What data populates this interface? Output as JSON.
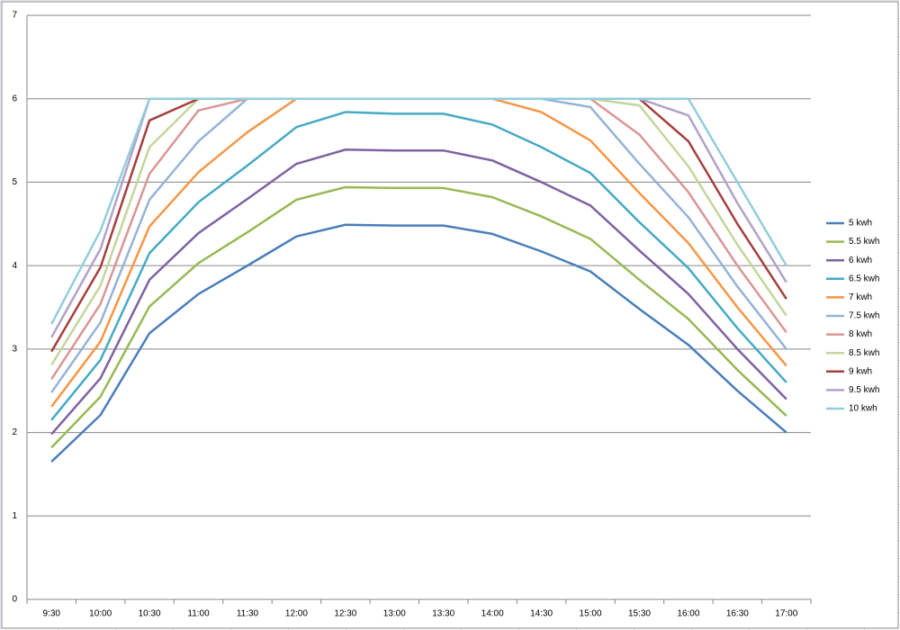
{
  "chart_data": {
    "type": "line",
    "categories": [
      "9:30",
      "10:00",
      "10:30",
      "11:00",
      "11:30",
      "12:00",
      "12:30",
      "13:00",
      "13:30",
      "14:00",
      "14:30",
      "15:00",
      "15:30",
      "16:00",
      "16:30",
      "17:00"
    ],
    "ylim": [
      0,
      7
    ],
    "yticks": [
      0,
      1,
      2,
      3,
      4,
      5,
      6,
      7
    ],
    "grid": true,
    "legend": "right",
    "series": [
      {
        "name": "5 kwh",
        "color": "#4a7ebb",
        "values": [
          1.65,
          2.21,
          3.19,
          3.66,
          4.0,
          4.35,
          4.49,
          4.48,
          4.48,
          4.38,
          4.17,
          3.93,
          3.48,
          3.05,
          2.5,
          2.0
        ]
      },
      {
        "name": "5.5 kwh",
        "color": "#98b954",
        "values": [
          1.82,
          2.43,
          3.51,
          4.03,
          4.4,
          4.79,
          4.94,
          4.93,
          4.93,
          4.82,
          4.59,
          4.32,
          3.83,
          3.36,
          2.75,
          2.2
        ]
      },
      {
        "name": "6 kwh",
        "color": "#7e62a1",
        "values": [
          1.98,
          2.65,
          3.83,
          4.39,
          4.8,
          5.22,
          5.39,
          5.38,
          5.38,
          5.26,
          5.0,
          4.72,
          4.18,
          3.66,
          3.0,
          2.4
        ]
      },
      {
        "name": "6.5 kwh",
        "color": "#46aac5",
        "values": [
          2.15,
          2.87,
          4.15,
          4.76,
          5.2,
          5.66,
          5.84,
          5.82,
          5.82,
          5.69,
          5.42,
          5.11,
          4.52,
          3.97,
          3.25,
          2.6
        ]
      },
      {
        "name": "7 kwh",
        "color": "#f79646",
        "values": [
          2.31,
          3.09,
          4.47,
          5.12,
          5.6,
          6,
          6,
          6,
          6,
          6,
          5.84,
          5.5,
          4.87,
          4.27,
          3.5,
          2.8
        ]
      },
      {
        "name": "7.5 kwh",
        "color": "#95b3d7",
        "values": [
          2.48,
          3.32,
          4.79,
          5.49,
          6,
          6,
          6,
          6,
          6,
          6,
          6,
          5.9,
          5.22,
          4.58,
          3.75,
          3.0
        ]
      },
      {
        "name": "8 kwh",
        "color": "#d99694",
        "values": [
          2.64,
          3.54,
          5.1,
          5.86,
          6,
          6,
          6,
          6,
          6,
          6,
          6,
          6,
          5.57,
          4.88,
          4.0,
          3.2
        ]
      },
      {
        "name": "8.5 kwh",
        "color": "#c3d69b",
        "values": [
          2.81,
          3.76,
          5.42,
          6,
          6,
          6,
          6,
          6,
          6,
          6,
          6,
          6,
          5.92,
          5.19,
          4.25,
          3.4
        ]
      },
      {
        "name": "9 kwh",
        "color": "#a4403d",
        "values": [
          2.97,
          3.98,
          5.74,
          6,
          6,
          6,
          6,
          6,
          6,
          6,
          6,
          6,
          6,
          5.49,
          4.5,
          3.6
        ]
      },
      {
        "name": "9.5 kwh",
        "color": "#b3a2c7",
        "values": [
          3.14,
          4.2,
          6,
          6,
          6,
          6,
          6,
          6,
          6,
          6,
          6,
          6,
          6,
          5.8,
          4.75,
          3.8
        ]
      },
      {
        "name": "10 kwh",
        "color": "#93cddd",
        "values": [
          3.3,
          4.42,
          6,
          6,
          6,
          6,
          6,
          6,
          6,
          6,
          6,
          6,
          6,
          6,
          5.0,
          4.0
        ]
      }
    ]
  }
}
